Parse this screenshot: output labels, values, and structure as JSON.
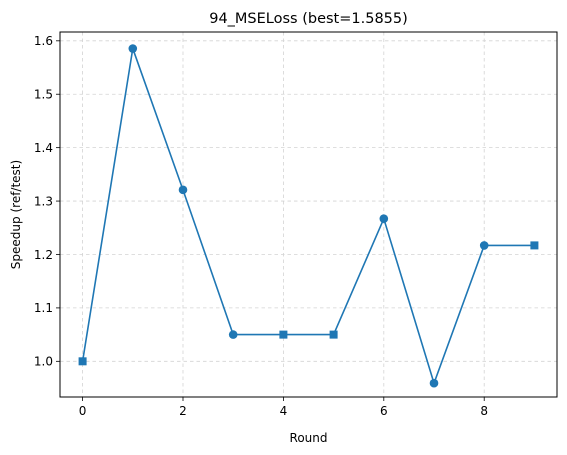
{
  "chart_data": {
    "type": "line",
    "title": "94_MSELoss (best=1.5855)",
    "xlabel": "Round",
    "ylabel": "Speedup (ref/test)",
    "xlim": [
      -0.45,
      9.45
    ],
    "ylim": [
      0.9332,
      1.6165
    ],
    "xticks": [
      0,
      2,
      4,
      6,
      8
    ],
    "xtick_labels": [
      "0",
      "2",
      "4",
      "6",
      "8"
    ],
    "yticks": [
      1.0,
      1.1,
      1.2,
      1.3,
      1.4,
      1.5,
      1.6
    ],
    "ytick_labels": [
      "1.0",
      "1.1",
      "1.2",
      "1.3",
      "1.4",
      "1.5",
      "1.6"
    ],
    "grid": true,
    "grid_style": "dashed",
    "legend": "none",
    "series": [
      {
        "color": "#1f77b4",
        "x": [
          0,
          1,
          2,
          3,
          4,
          5,
          6,
          7,
          8,
          9
        ],
        "y": [
          1.0,
          1.5855,
          1.321,
          1.05,
          1.05,
          1.05,
          1.267,
          0.959,
          1.217,
          1.217
        ],
        "markers": [
          "square",
          "circle",
          "circle",
          "circle",
          "square",
          "square",
          "circle",
          "circle",
          "circle",
          "square"
        ]
      }
    ]
  }
}
